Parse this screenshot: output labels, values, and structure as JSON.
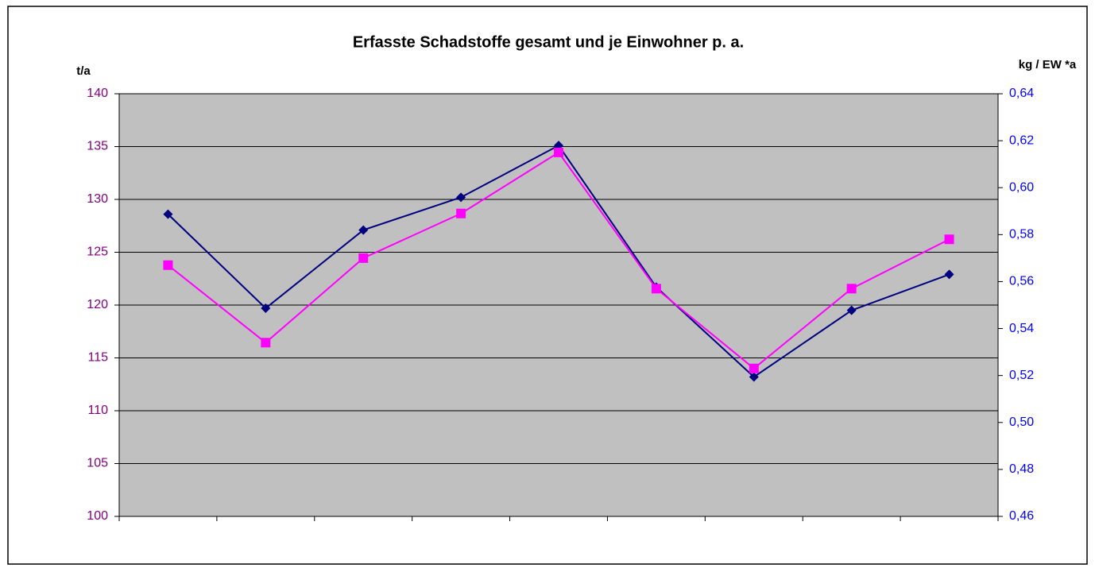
{
  "chart_data": {
    "type": "line",
    "title": "Erfasste Schadstoffe gesamt und je Einwohner p. a.",
    "ylabel": "t/a",
    "y2label": "kg / EW *a",
    "categories": [
      null,
      null,
      null,
      null,
      null,
      null,
      null,
      null,
      null
    ],
    "series": [
      {
        "color": "#000080",
        "marker": "diamond",
        "values": [
          128.6,
          119.7,
          127.1,
          130.2,
          135.1,
          121.7,
          113.2,
          119.5,
          122.9
        ]
      },
      {
        "color": "#ff00ff",
        "marker": "square",
        "axis": "y2",
        "values": [
          0.567,
          0.534,
          0.57,
          0.589,
          0.615,
          0.557,
          0.523,
          0.557,
          0.578
        ]
      }
    ],
    "ylim": [
      100,
      140
    ],
    "yticks": [
      100,
      105,
      110,
      115,
      120,
      125,
      130,
      135,
      140
    ],
    "y2lim": [
      0.46,
      0.64
    ],
    "y2ticks": [
      {
        "value": 0.46,
        "label": "0,46"
      },
      {
        "value": 0.48,
        "label": "0,48"
      },
      {
        "value": 0.5,
        "label": "0,50"
      },
      {
        "value": 0.52,
        "label": "0,52"
      },
      {
        "value": 0.54,
        "label": "0,54"
      },
      {
        "value": 0.56,
        "label": "0,56"
      },
      {
        "value": 0.58,
        "label": "0,58"
      },
      {
        "value": 0.6,
        "label": "0,60"
      },
      {
        "value": 0.62,
        "label": "0,62"
      },
      {
        "value": 0.64,
        "label": "0,64"
      }
    ],
    "grid": true,
    "plot_background": "#c0c0c0",
    "ytick_color": "#800080",
    "y2tick_color": "#0000ff"
  }
}
